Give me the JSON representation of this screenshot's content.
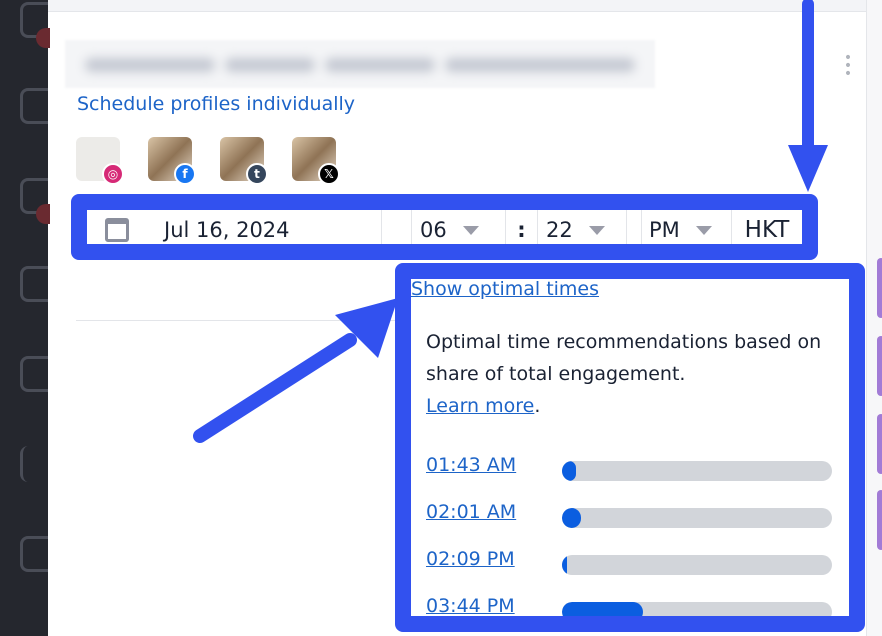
{
  "schedule_link": "Schedule profiles individually",
  "profiles": [
    {
      "network": "instagram",
      "badge": "◎",
      "color": "#d62976"
    },
    {
      "network": "facebook",
      "badge": "f",
      "color": "#1877f2"
    },
    {
      "network": "tumblr",
      "badge": "t",
      "color": "#35465c"
    },
    {
      "network": "x",
      "badge": "𝕏",
      "color": "#000000"
    }
  ],
  "datetime": {
    "date": "Jul 16, 2024",
    "hour": "06",
    "separator": ":",
    "minute": "22",
    "meridiem": "PM",
    "timezone": "HKT"
  },
  "optimal": {
    "show_link": "Show optimal times",
    "description": "Optimal time recommendations based on share of total engagement.",
    "learn_more": "Learn more",
    "period": ".",
    "times": [
      {
        "time": "01:43 AM",
        "share_pct": 5
      },
      {
        "time": "02:01 AM",
        "share_pct": 7
      },
      {
        "time": "02:09 PM",
        "share_pct": 2
      },
      {
        "time": "03:44 PM",
        "share_pct": 30
      }
    ]
  },
  "colors": {
    "annotation": "#3251ef",
    "link": "#1d64c8",
    "bar_fill": "#0b5ee0",
    "bar_track": "#d2d5da"
  }
}
